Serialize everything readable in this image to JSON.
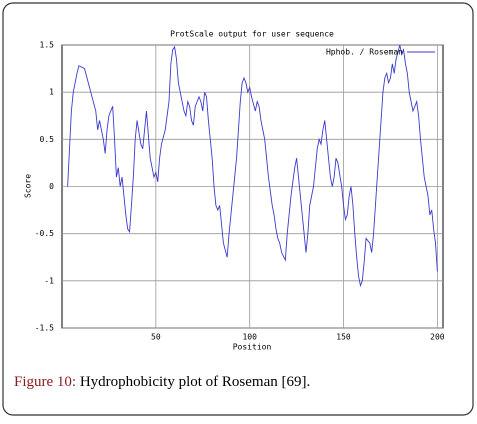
{
  "chart_data": {
    "type": "line",
    "title": "ProtScale output for user sequence",
    "x_label": "Position",
    "y_label": "Score",
    "xlim": [
      0,
      203
    ],
    "xticks": [
      50,
      100,
      150,
      200
    ],
    "ylim": [
      -1.5,
      1.5
    ],
    "yticks": [
      -1.5,
      -1,
      -0.5,
      0,
      0.5,
      1,
      1.5
    ],
    "grid": true,
    "legend": "upper right",
    "x": [
      3,
      5,
      6,
      8,
      9,
      12,
      14,
      16,
      18,
      19,
      20,
      22,
      23,
      24,
      25,
      27,
      28,
      29,
      30,
      31,
      32,
      33,
      34,
      35,
      36,
      37,
      38,
      39,
      40,
      42,
      43,
      44,
      45,
      46,
      47,
      48,
      49,
      50,
      51,
      52,
      53,
      55,
      57,
      58,
      59,
      60,
      61,
      62,
      63,
      64,
      65,
      66,
      67,
      68,
      69,
      70,
      71,
      73,
      74,
      75,
      76,
      77,
      78,
      79,
      80,
      81,
      82,
      83,
      84,
      85,
      86,
      88,
      89,
      90,
      91,
      92,
      93,
      94,
      95,
      96,
      97,
      98,
      99,
      100,
      101,
      103,
      104,
      105,
      106,
      107,
      108,
      109,
      110,
      111,
      112,
      113,
      114,
      115,
      116,
      117,
      119,
      120,
      121,
      122,
      123,
      124,
      125,
      126,
      127,
      128,
      129,
      130,
      131,
      132,
      134,
      135,
      136,
      137,
      138,
      139,
      140,
      141,
      142,
      143,
      144,
      145,
      146,
      147,
      149,
      150,
      151,
      152,
      153,
      154,
      155,
      156,
      157,
      158,
      159,
      160,
      161,
      162,
      164,
      165,
      166,
      167,
      168,
      169,
      170,
      171,
      172,
      173,
      174,
      175,
      176,
      177,
      178,
      180,
      181,
      182,
      183,
      184,
      185,
      186,
      187,
      188,
      189,
      190,
      191,
      192,
      193,
      195,
      196,
      197,
      198,
      199,
      200
    ],
    "series": [
      {
        "name": "Hphob. / Roseman",
        "color": "#3a3ad0",
        "values": [
          0.0,
          0.8,
          1.0,
          1.2,
          1.28,
          1.25,
          1.1,
          0.95,
          0.8,
          0.6,
          0.7,
          0.5,
          0.35,
          0.6,
          0.75,
          0.85,
          0.5,
          0.1,
          0.2,
          0.0,
          0.1,
          -0.1,
          -0.3,
          -0.45,
          -0.48,
          -0.2,
          0.1,
          0.5,
          0.7,
          0.45,
          0.4,
          0.6,
          0.8,
          0.55,
          0.3,
          0.2,
          0.1,
          0.15,
          0.05,
          0.3,
          0.45,
          0.6,
          0.9,
          1.3,
          1.45,
          1.48,
          1.35,
          1.1,
          1.0,
          0.9,
          0.8,
          0.75,
          0.9,
          0.85,
          0.7,
          0.65,
          0.85,
          0.95,
          0.9,
          0.8,
          1.0,
          0.95,
          0.7,
          0.5,
          0.3,
          0.0,
          -0.2,
          -0.25,
          -0.2,
          -0.4,
          -0.6,
          -0.75,
          -0.5,
          -0.3,
          -0.1,
          0.1,
          0.3,
          0.6,
          0.9,
          1.1,
          1.15,
          1.1,
          1.0,
          1.05,
          0.95,
          0.8,
          0.9,
          0.85,
          0.7,
          0.6,
          0.5,
          0.3,
          0.1,
          -0.05,
          -0.2,
          -0.3,
          -0.45,
          -0.55,
          -0.6,
          -0.7,
          -0.78,
          -0.5,
          -0.3,
          -0.1,
          0.05,
          0.2,
          0.3,
          0.1,
          -0.1,
          -0.3,
          -0.5,
          -0.7,
          -0.5,
          -0.2,
          0.0,
          0.2,
          0.4,
          0.5,
          0.45,
          0.6,
          0.7,
          0.5,
          0.3,
          0.1,
          0.0,
          0.1,
          0.3,
          0.25,
          0.0,
          -0.2,
          -0.35,
          -0.3,
          -0.1,
          0.0,
          -0.2,
          -0.5,
          -0.75,
          -0.95,
          -1.05,
          -1.0,
          -0.8,
          -0.55,
          -0.6,
          -0.7,
          -0.5,
          -0.2,
          0.1,
          0.4,
          0.7,
          1.0,
          1.15,
          1.2,
          1.1,
          1.15,
          1.3,
          1.2,
          1.35,
          1.5,
          1.4,
          1.45,
          1.3,
          1.2,
          1.0,
          0.9,
          0.8,
          0.85,
          0.9,
          0.75,
          0.5,
          0.3,
          0.1,
          -0.1,
          -0.3,
          -0.25,
          -0.45,
          -0.6,
          -0.9
        ]
      }
    ]
  },
  "caption": {
    "label": "Figure 10:",
    "text": "Hydrophobicity plot of Roseman [69]."
  }
}
